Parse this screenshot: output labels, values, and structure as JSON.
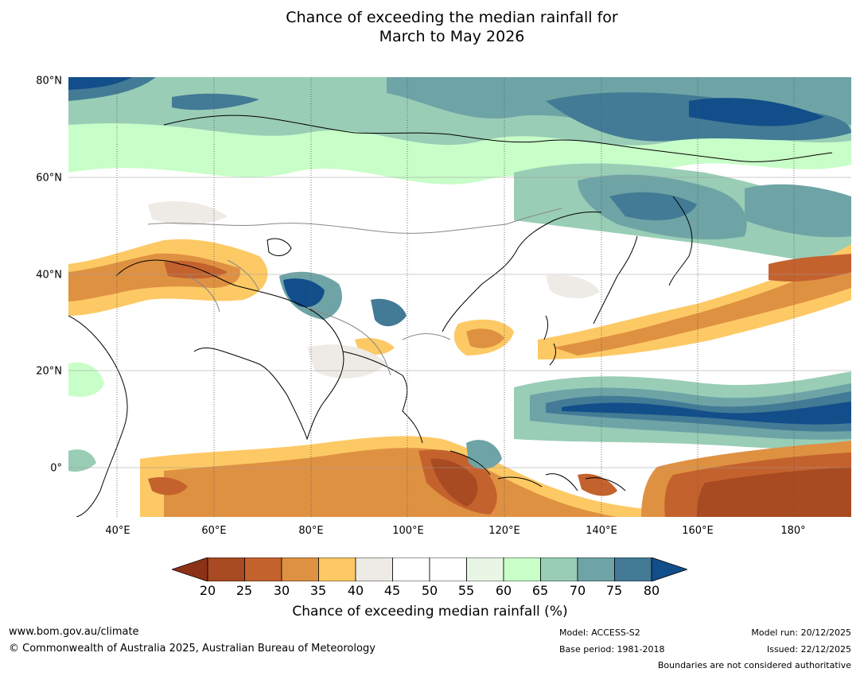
{
  "title": {
    "line1": "Chance of exceeding the median rainfall for",
    "line2": "March to May 2026"
  },
  "axes": {
    "lat_labels": [
      "80°N",
      "60°N",
      "40°N",
      "20°N",
      "0°"
    ],
    "lon_labels": [
      "40°E",
      "60°E",
      "80°E",
      "100°E",
      "120°E",
      "140°E",
      "160°E",
      "180°"
    ]
  },
  "colorbar": {
    "label": "Chance of exceeding median rainfall (%)",
    "ticks": [
      "20",
      "25",
      "30",
      "35",
      "40",
      "45",
      "50",
      "55",
      "60",
      "65",
      "70",
      "75",
      "80"
    ],
    "under_color": "#8c3216",
    "over_color": "#124e8a",
    "colors": [
      "#a84a22",
      "#c4622e",
      "#df9142",
      "#fdc965",
      "#eeebe6",
      "#ffffff",
      "#ffffff",
      "#e9f6e6",
      "#c8fec8",
      "#99cdb6",
      "#6ea4a6",
      "#437a95"
    ]
  },
  "footer": {
    "url": "www.bom.gov.au/climate",
    "copyright": "© Commonwealth of Australia 2025, Australian Bureau of Meteorology",
    "model": "Model: ACCESS-S2",
    "base_period": "Base period: 1981-2018",
    "model_run": "Model run: 20/12/2025",
    "issued": "Issued: 22/12/2025",
    "disclaimer": "Boundaries are not considered authoritative"
  }
}
